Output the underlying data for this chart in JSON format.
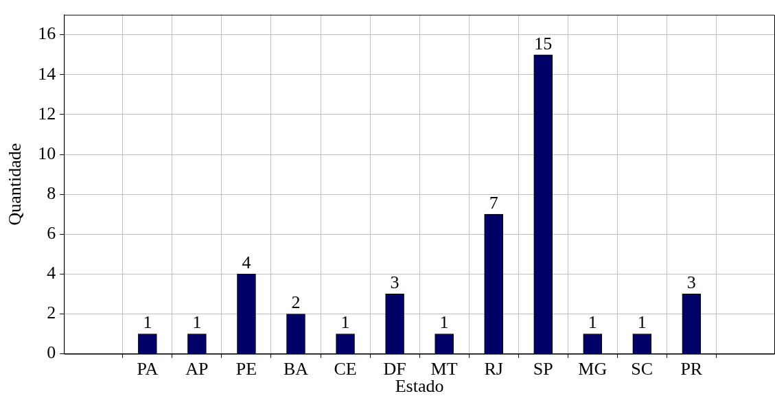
{
  "chart_data": {
    "type": "bar",
    "xlabel": "Estado",
    "ylabel": "Quantidade",
    "categories": [
      "PA",
      "AP",
      "PE",
      "BA",
      "CE",
      "DF",
      "MT",
      "RJ",
      "SP",
      "MG",
      "SC",
      "PR"
    ],
    "values": [
      1,
      1,
      4,
      2,
      1,
      3,
      1,
      7,
      15,
      1,
      1,
      3
    ],
    "color": "#000066",
    "ylim": [
      0,
      17
    ],
    "yticks": [
      0,
      2,
      4,
      6,
      8,
      10,
      12,
      14,
      16
    ],
    "grid": true,
    "data_labels": true,
    "legend": false
  }
}
